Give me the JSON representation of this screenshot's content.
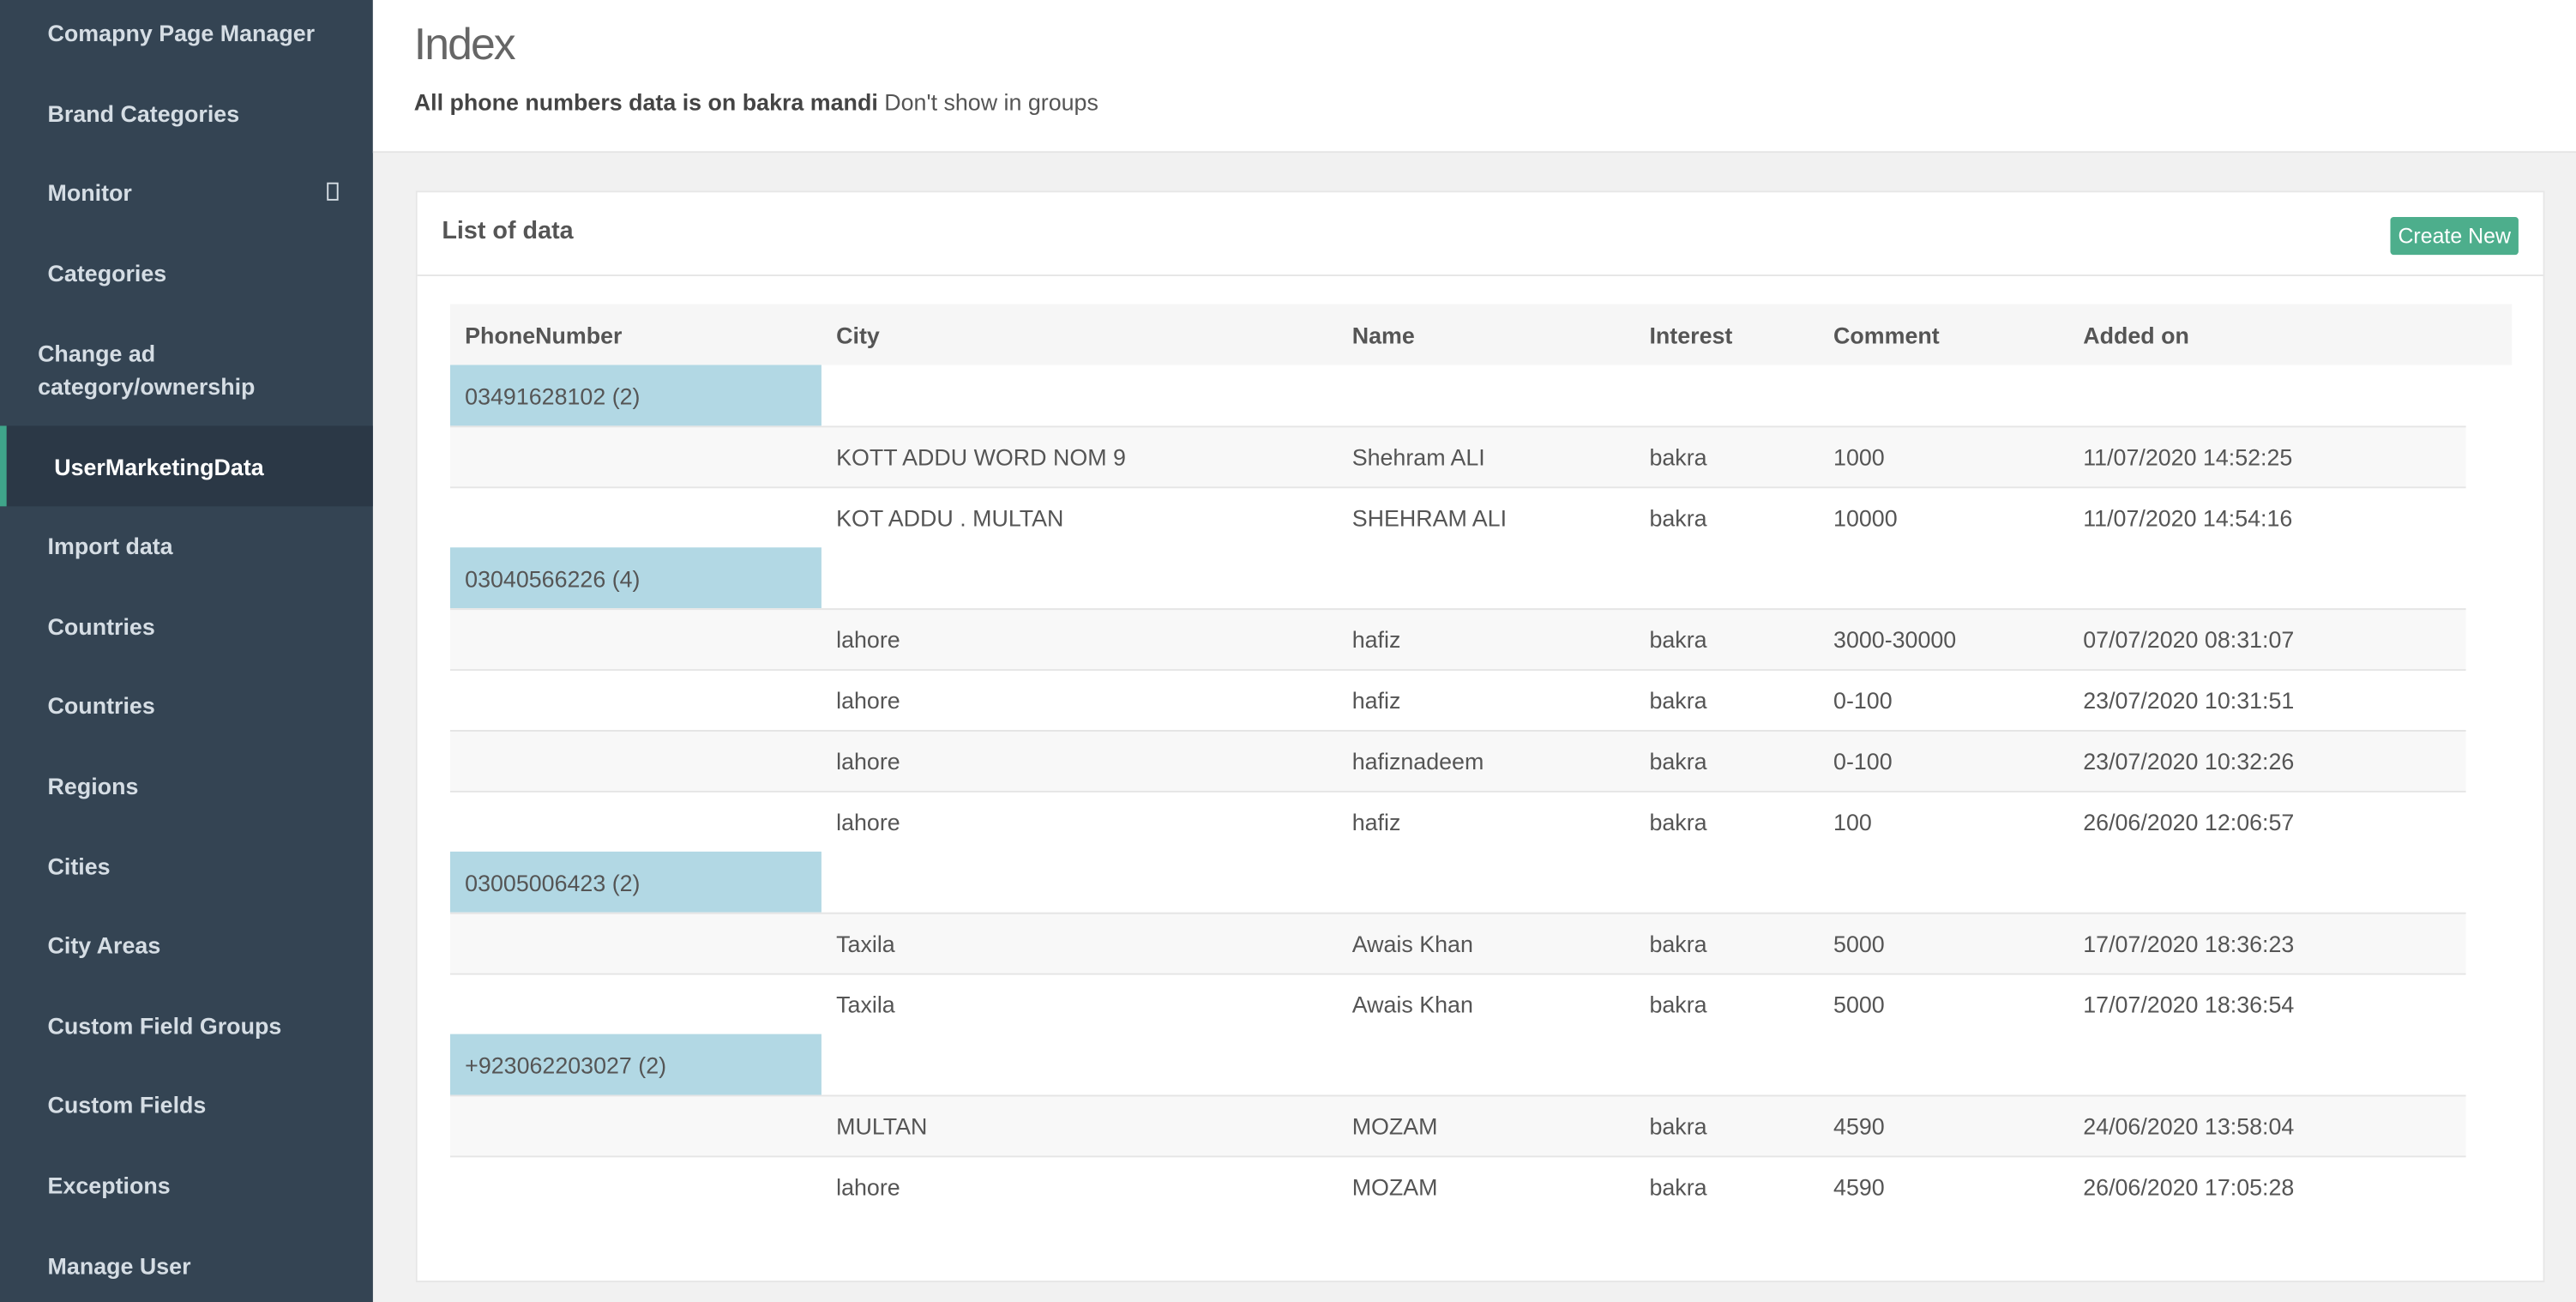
{
  "sidebar": [
    "Comapny Page Manager",
    "Brand Categories",
    "Monitor",
    "Categories",
    "Change ad category/ownership",
    "UserMarketingData",
    "Import data",
    "Countries",
    "Countries",
    "Regions",
    "Cities",
    "City Areas",
    "Custom Field Groups",
    "Custom Fields",
    "Exceptions",
    "Manage User"
  ],
  "header": {
    "title": "Index",
    "subtitle_bold": "All phone numbers data is on bakra mandi",
    "subtitle": "Don't show in groups"
  },
  "panel": {
    "title": "List of data",
    "button": "Create New"
  },
  "table": {
    "columns": [
      "PhoneNumber",
      "City",
      "Name",
      "Interest",
      "Comment",
      "Added on"
    ],
    "groups": [
      {
        "phone": "03491628102 (2)",
        "rows": [
          [
            "KOTT ADDU WORD NOM 9",
            "Shehram ALI",
            "bakra",
            "1000",
            "11/07/2020 14:52:25"
          ],
          [
            "KOT ADDU . MULTAN",
            "SHEHRAM ALI",
            "bakra",
            "10000",
            "11/07/2020 14:54:16"
          ]
        ]
      },
      {
        "phone": "03040566226 (4)",
        "rows": [
          [
            "lahore",
            "hafiz",
            "bakra",
            "3000-30000",
            "07/07/2020 08:31:07"
          ],
          [
            "lahore",
            "hafiz",
            "bakra",
            "0-100",
            "23/07/2020 10:31:51"
          ],
          [
            "lahore",
            "hafiznadeem",
            "bakra",
            "0-100",
            "23/07/2020 10:32:26"
          ],
          [
            "lahore",
            "hafiz",
            "bakra",
            "100",
            "26/06/2020 12:06:57"
          ]
        ]
      },
      {
        "phone": "03005006423 (2)",
        "rows": [
          [
            "Taxila",
            "Awais Khan",
            "bakra",
            "5000",
            "17/07/2020 18:36:23"
          ],
          [
            "Taxila",
            "Awais Khan",
            "bakra",
            "5000",
            "17/07/2020 18:36:54"
          ]
        ]
      },
      {
        "phone": "+923062203027 (2)",
        "rows": [
          [
            "MULTAN",
            "MOZAM",
            "bakra",
            "4590",
            "24/06/2020 13:58:04"
          ],
          [
            "lahore",
            "MOZAM",
            "bakra",
            "4590",
            "26/06/2020 17:05:28"
          ]
        ]
      }
    ]
  }
}
